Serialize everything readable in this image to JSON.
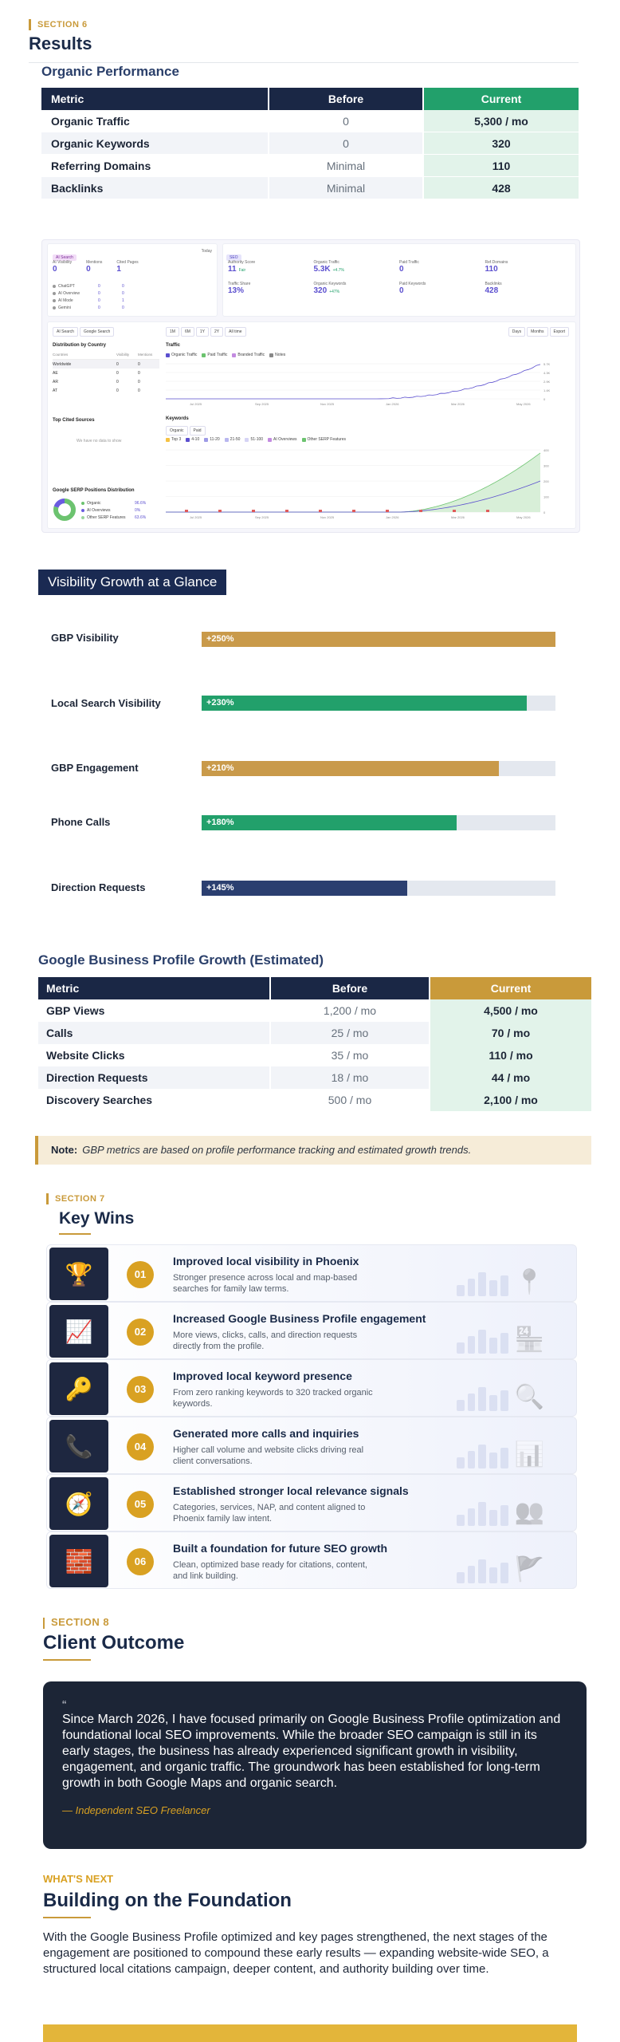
{
  "section6": {
    "eyebrow": "SECTION 6",
    "title": "Results",
    "subtitle": "Organic Performance",
    "table": {
      "headers": [
        "Metric",
        "Before",
        "Current"
      ],
      "rows": [
        [
          "Organic Traffic",
          "0",
          "5,300 / mo"
        ],
        [
          "Organic Keywords",
          "0",
          "320"
        ],
        [
          "Referring Domains",
          "Minimal",
          "110"
        ],
        [
          "Backlinks",
          "Minimal",
          "428"
        ]
      ]
    }
  },
  "dashboard": {
    "ai_tab": "AI Search",
    "seo_tab": "SEO",
    "today": "Today",
    "ai_stats": [
      {
        "label": "AI Visibility",
        "value": "0"
      },
      {
        "label": "Mentions",
        "value": "0"
      },
      {
        "label": "Cited Pages",
        "value": "1"
      }
    ],
    "ai_sources": [
      {
        "name": "ChatGPT",
        "m": "0",
        "c": "0"
      },
      {
        "name": "AI Overview",
        "m": "0",
        "c": "0"
      },
      {
        "name": "AI Mode",
        "m": "0",
        "c": "1"
      },
      {
        "name": "Gemini",
        "m": "0",
        "c": "0"
      }
    ],
    "seo_stats": [
      {
        "label": "Authority Score",
        "value": "11",
        "delta": "Fair"
      },
      {
        "label": "Organic Traffic",
        "value": "5.3K",
        "delta": "+4.7%"
      },
      {
        "label": "Paid Traffic",
        "value": "0",
        "delta": ""
      },
      {
        "label": "Ref.Domains",
        "value": "110",
        "delta": ""
      },
      {
        "label": "Traffic Share",
        "value": "13%",
        "delta": ""
      },
      {
        "label": "Organic Keywords",
        "value": "320",
        "delta": "+47%"
      },
      {
        "label": "Paid Keywords",
        "value": "0",
        "delta": ""
      },
      {
        "label": "Backlinks",
        "value": "428",
        "delta": ""
      }
    ],
    "left_tabs": [
      "AI Search",
      "Google Search"
    ],
    "dist_title": "Distribution by Country",
    "dist_cols": [
      "Countries",
      "Visibility",
      "Mentions"
    ],
    "dist_rows": [
      [
        "Worldwide",
        "0",
        "0"
      ],
      [
        "AE",
        "0",
        "0"
      ],
      [
        "AR",
        "0",
        "0"
      ],
      [
        "AT",
        "0",
        "0"
      ]
    ],
    "cited_title": "Top Cited Sources",
    "cited_empty": "We have no data to show",
    "serp_title": "Google SERP Positions Distribution",
    "serp_items": [
      {
        "label": "Organic",
        "value": "96.6%"
      },
      {
        "label": "AI Overviews",
        "value": "0%"
      },
      {
        "label": "Other SERP Features",
        "value": "63.6%"
      }
    ],
    "range_buttons": [
      "1M",
      "6M",
      "1Y",
      "2Y",
      "All time"
    ],
    "view_buttons": [
      "Days",
      "Months",
      "Export"
    ],
    "traffic_title": "Traffic",
    "traffic_legend": [
      "Organic Traffic",
      "Paid Traffic",
      "Branded Traffic",
      "Notes"
    ],
    "traffic_x": [
      "Jul 2025",
      "Sep 2025",
      "Nov 2025",
      "Jan 2026",
      "Mar 2026",
      "May 2026"
    ],
    "traffic_y": [
      "5.7K",
      "4.3K",
      "2.9K",
      "1.4K",
      "0"
    ],
    "keywords_title": "Keywords",
    "keywords_tabs": [
      "Organic",
      "Paid"
    ],
    "keywords_legend": [
      "Top 3",
      "4-10",
      "11-20",
      "21-50",
      "51-100",
      "AI Overviews",
      "Other SERP Features"
    ],
    "keywords_y": [
      "400",
      "300",
      "200",
      "100",
      "0"
    ]
  },
  "visibility": {
    "title": "Visibility Growth at a Glance",
    "rows": [
      {
        "label": "GBP Visibility",
        "value": "+250%",
        "fill": 1.0,
        "color": "#c99a4a"
      },
      {
        "label": "Local Search Visibility",
        "value": "+230%",
        "fill": 0.92,
        "color": "#22a06b"
      },
      {
        "label": "GBP Engagement",
        "value": "+210%",
        "fill": 0.84,
        "color": "#c99a4a"
      },
      {
        "label": "Phone Calls",
        "value": "+180%",
        "fill": 0.72,
        "color": "#22a06b"
      },
      {
        "label": "Direction Requests",
        "value": "+145%",
        "fill": 0.58,
        "color": "#2b3f70"
      }
    ]
  },
  "gbp": {
    "title": "Google Business Profile Growth (Estimated)",
    "headers": [
      "Metric",
      "Before",
      "Current"
    ],
    "rows": [
      [
        "GBP Views",
        "1,200 / mo",
        "4,500 / mo"
      ],
      [
        "Calls",
        "25 / mo",
        "70 / mo"
      ],
      [
        "Website Clicks",
        "35 / mo",
        "110 / mo"
      ],
      [
        "Direction Requests",
        "18 / mo",
        "44 / mo"
      ],
      [
        "Discovery Searches",
        "500 / mo",
        "2,100 / mo"
      ]
    ],
    "note_label": "Note:",
    "note_text": "GBP metrics are based on profile performance tracking and estimated growth trends."
  },
  "section7": {
    "eyebrow": "SECTION 7",
    "title": "Key Wins",
    "wins": [
      {
        "num": "01",
        "icon": "trophy-icon",
        "glyph": "🏆",
        "title": "Improved local visibility in Phoenix",
        "desc": "Stronger presence across local and map-based searches for family law terms."
      },
      {
        "num": "02",
        "icon": "chart-icon",
        "glyph": "📈",
        "title": "Increased Google Business Profile engagement",
        "desc": "More views, clicks, calls, and direction requests directly from the profile."
      },
      {
        "num": "03",
        "icon": "key-icon",
        "glyph": "🔑",
        "title": "Improved local keyword presence",
        "desc": "From zero ranking keywords to 320 tracked organic keywords."
      },
      {
        "num": "04",
        "icon": "phone-icon",
        "glyph": "📞",
        "title": "Generated more calls and inquiries",
        "desc": "Higher call volume and website clicks driving real client conversations."
      },
      {
        "num": "05",
        "icon": "compass-icon",
        "glyph": "🧭",
        "title": "Established stronger local relevance signals",
        "desc": "Categories, services, NAP, and content aligned to Phoenix family law intent."
      },
      {
        "num": "06",
        "icon": "brick-wall-icon",
        "glyph": "🧱",
        "title": "Built a foundation for future SEO growth",
        "desc": "Clean, optimized base ready for citations, content, and link building."
      }
    ]
  },
  "section8": {
    "eyebrow": "SECTION 8",
    "title": "Client Outcome",
    "quote_mark": "“",
    "quote": "Since March 2026, I have focused primarily on Google Business Profile optimization and foundational local SEO improvements. While the broader SEO campaign is still in its early stages, the business has already experienced significant growth in visibility, engagement, and organic traffic. The groundwork has been established for long-term growth in both Google Maps and organic search.",
    "author": "— Independent SEO Freelancer"
  },
  "next": {
    "eyebrow": "WHAT'S NEXT",
    "title": "Building on the Foundation",
    "body": "With the Google Business Profile optimized and key pages strengthened, the next stages of the engagement are positioned to compound these early results — expanding website-wide SEO, a structured local citations campaign, deeper content, and authority building over time."
  },
  "colors": {
    "navy": "#1a2745",
    "green": "#22a06b",
    "gold": "#c99a3a"
  }
}
